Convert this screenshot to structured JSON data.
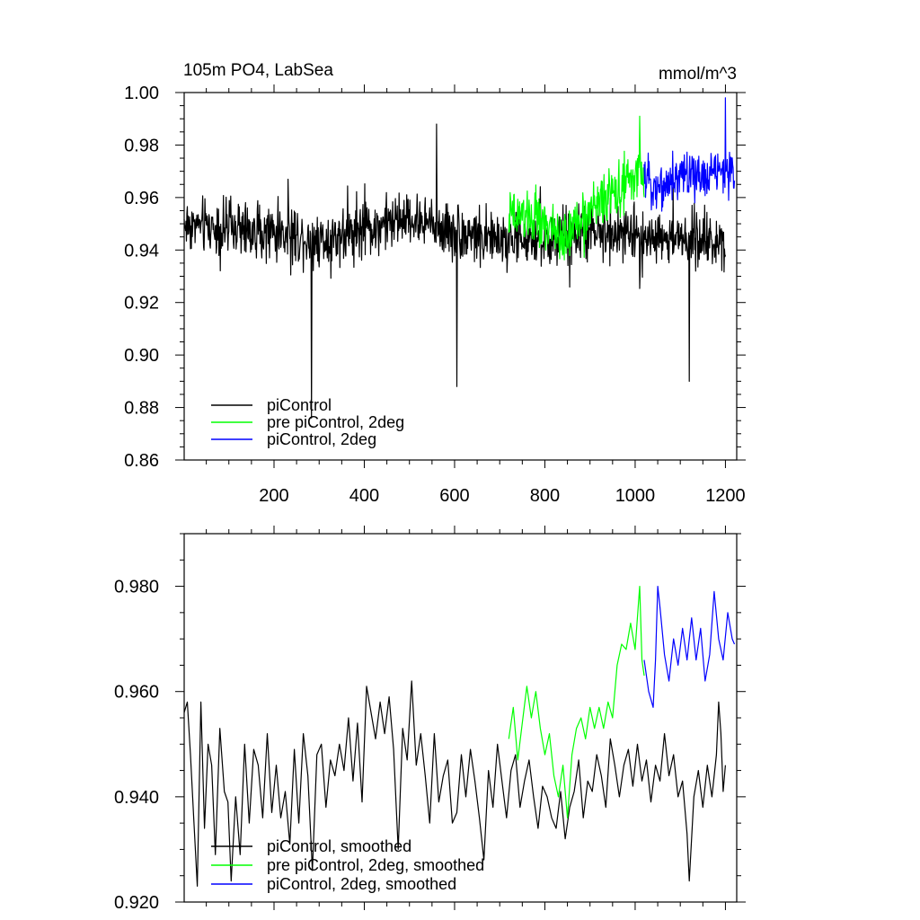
{
  "colors": {
    "black": "#000000",
    "green": "#00ff00",
    "blue": "#0000ff",
    "axis": "#000000",
    "background": "#ffffff"
  },
  "chart_data": [
    {
      "type": "line",
      "title": "105m PO4, LabSea",
      "units": "mmol/m^3",
      "xlim": [
        1,
        1225
      ],
      "ylim": [
        0.86,
        1.0
      ],
      "x_ticks": [
        200,
        400,
        600,
        800,
        1000,
        1200
      ],
      "x_tick_labels": [
        "200",
        "400",
        "600",
        "800",
        "1000",
        "1200"
      ],
      "y_ticks": [
        0.86,
        0.88,
        0.9,
        0.92,
        0.94,
        0.96,
        0.98,
        1.0
      ],
      "y_tick_labels": [
        "0.86",
        "0.88",
        "0.90",
        "0.92",
        "0.94",
        "0.96",
        "0.98",
        "1.00"
      ],
      "grid": false,
      "legend_position": "bottom-left",
      "series": [
        {
          "name": "piControl",
          "color": "#000000",
          "x_start": 1,
          "x_end": 1200,
          "anchors": [
            [
              1,
              0.95
            ],
            [
              100,
              0.948
            ],
            [
              200,
              0.947
            ],
            [
              300,
              0.944
            ],
            [
              400,
              0.948
            ],
            [
              500,
              0.952
            ],
            [
              600,
              0.947
            ],
            [
              700,
              0.944
            ],
            [
              800,
              0.944
            ],
            [
              900,
              0.946
            ],
            [
              1000,
              0.946
            ],
            [
              1100,
              0.944
            ],
            [
              1200,
              0.944
            ]
          ],
          "noise": 0.012,
          "extremes": [
            [
              283,
              0.876
            ],
            [
              560,
              0.988
            ],
            [
              605,
              0.888
            ],
            [
              1120,
              0.89
            ]
          ]
        },
        {
          "name": "pre piControl, 2deg",
          "color": "#00ff00",
          "x_start": 720,
          "x_end": 1020,
          "anchors": [
            [
              720,
              0.952
            ],
            [
              760,
              0.953
            ],
            [
              800,
              0.95
            ],
            [
              840,
              0.944
            ],
            [
              880,
              0.952
            ],
            [
              920,
              0.958
            ],
            [
              960,
              0.963
            ],
            [
              1000,
              0.967
            ],
            [
              1020,
              0.97
            ]
          ],
          "noise": 0.011,
          "extremes": [
            [
              1010,
              0.991
            ]
          ]
        },
        {
          "name": "piControl, 2deg",
          "color": "#0000ff",
          "x_start": 1020,
          "x_end": 1220,
          "anchors": [
            [
              1020,
              0.967
            ],
            [
              1060,
              0.964
            ],
            [
              1100,
              0.969
            ],
            [
              1140,
              0.968
            ],
            [
              1180,
              0.97
            ],
            [
              1220,
              0.969
            ]
          ],
          "noise": 0.01,
          "extremes": [
            [
              1200,
              0.998
            ]
          ]
        }
      ]
    },
    {
      "type": "line",
      "xlim": [
        1,
        1225
      ],
      "ylim": [
        0.92,
        0.99
      ],
      "x_ticks": [
        200,
        400,
        600,
        800,
        1000,
        1200
      ],
      "y_ticks": [
        0.92,
        0.94,
        0.96,
        0.98
      ],
      "y_tick_labels": [
        "0.920",
        "0.940",
        "0.960",
        "0.980"
      ],
      "grid": false,
      "legend_position": "bottom-left",
      "series": [
        {
          "name": "piControl, smoothed",
          "color": "#000000",
          "points": [
            [
              1,
              0.956
            ],
            [
              8,
              0.958
            ],
            [
              15,
              0.948
            ],
            [
              22,
              0.936
            ],
            [
              30,
              0.923
            ],
            [
              38,
              0.958
            ],
            [
              46,
              0.934
            ],
            [
              54,
              0.95
            ],
            [
              62,
              0.946
            ],
            [
              70,
              0.929
            ],
            [
              80,
              0.953
            ],
            [
              90,
              0.941
            ],
            [
              98,
              0.939
            ],
            [
              105,
              0.924
            ],
            [
              115,
              0.94
            ],
            [
              125,
              0.929
            ],
            [
              135,
              0.95
            ],
            [
              145,
              0.935
            ],
            [
              155,
              0.949
            ],
            [
              165,
              0.946
            ],
            [
              175,
              0.936
            ],
            [
              185,
              0.952
            ],
            [
              195,
              0.937
            ],
            [
              205,
              0.946
            ],
            [
              215,
              0.936
            ],
            [
              225,
              0.941
            ],
            [
              235,
              0.931
            ],
            [
              245,
              0.949
            ],
            [
              255,
              0.935
            ],
            [
              265,
              0.952
            ],
            [
              275,
              0.944
            ],
            [
              285,
              0.926
            ],
            [
              295,
              0.948
            ],
            [
              305,
              0.95
            ],
            [
              315,
              0.938
            ],
            [
              325,
              0.947
            ],
            [
              335,
              0.944
            ],
            [
              345,
              0.95
            ],
            [
              355,
              0.945
            ],
            [
              365,
              0.955
            ],
            [
              375,
              0.943
            ],
            [
              385,
              0.954
            ],
            [
              395,
              0.939
            ],
            [
              405,
              0.961
            ],
            [
              415,
              0.956
            ],
            [
              425,
              0.951
            ],
            [
              435,
              0.958
            ],
            [
              445,
              0.952
            ],
            [
              455,
              0.959
            ],
            [
              465,
              0.949
            ],
            [
              475,
              0.93
            ],
            [
              485,
              0.953
            ],
            [
              495,
              0.947
            ],
            [
              505,
              0.962
            ],
            [
              515,
              0.946
            ],
            [
              525,
              0.952
            ],
            [
              535,
              0.944
            ],
            [
              545,
              0.935
            ],
            [
              555,
              0.952
            ],
            [
              565,
              0.939
            ],
            [
              575,
              0.944
            ],
            [
              585,
              0.947
            ],
            [
              595,
              0.935
            ],
            [
              605,
              0.937
            ],
            [
              615,
              0.948
            ],
            [
              625,
              0.94
            ],
            [
              635,
              0.949
            ],
            [
              645,
              0.943
            ],
            [
              655,
              0.936
            ],
            [
              665,
              0.928
            ],
            [
              675,
              0.945
            ],
            [
              685,
              0.938
            ],
            [
              695,
              0.95
            ],
            [
              705,
              0.943
            ],
            [
              715,
              0.936
            ],
            [
              725,
              0.945
            ],
            [
              735,
              0.948
            ],
            [
              745,
              0.938
            ],
            [
              755,
              0.943
            ],
            [
              765,
              0.947
            ],
            [
              775,
              0.94
            ],
            [
              785,
              0.934
            ],
            [
              795,
              0.942
            ],
            [
              805,
              0.94
            ],
            [
              815,
              0.936
            ],
            [
              825,
              0.934
            ],
            [
              835,
              0.941
            ],
            [
              845,
              0.932
            ],
            [
              855,
              0.938
            ],
            [
              865,
              0.941
            ],
            [
              875,
              0.947
            ],
            [
              885,
              0.936
            ],
            [
              895,
              0.943
            ],
            [
              905,
              0.941
            ],
            [
              915,
              0.948
            ],
            [
              925,
              0.944
            ],
            [
              935,
              0.938
            ],
            [
              945,
              0.951
            ],
            [
              955,
              0.946
            ],
            [
              965,
              0.94
            ],
            [
              975,
              0.946
            ],
            [
              985,
              0.949
            ],
            [
              995,
              0.942
            ],
            [
              1005,
              0.95
            ],
            [
              1015,
              0.943
            ],
            [
              1025,
              0.947
            ],
            [
              1035,
              0.939
            ],
            [
              1045,
              0.946
            ],
            [
              1055,
              0.943
            ],
            [
              1065,
              0.952
            ],
            [
              1075,
              0.944
            ],
            [
              1085,
              0.948
            ],
            [
              1095,
              0.94
            ],
            [
              1105,
              0.943
            ],
            [
              1115,
              0.933
            ],
            [
              1120,
              0.924
            ],
            [
              1130,
              0.94
            ],
            [
              1140,
              0.945
            ],
            [
              1150,
              0.938
            ],
            [
              1160,
              0.946
            ],
            [
              1170,
              0.94
            ],
            [
              1180,
              0.948
            ],
            [
              1185,
              0.958
            ],
            [
              1190,
              0.952
            ],
            [
              1195,
              0.941
            ],
            [
              1200,
              0.946
            ]
          ]
        },
        {
          "name": "pre piControl, 2deg, smoothed",
          "color": "#00ff00",
          "points": [
            [
              720,
              0.951
            ],
            [
              730,
              0.957
            ],
            [
              740,
              0.947
            ],
            [
              750,
              0.954
            ],
            [
              760,
              0.961
            ],
            [
              770,
              0.955
            ],
            [
              780,
              0.96
            ],
            [
              790,
              0.953
            ],
            [
              800,
              0.948
            ],
            [
              810,
              0.952
            ],
            [
              820,
              0.944
            ],
            [
              830,
              0.94
            ],
            [
              840,
              0.946
            ],
            [
              850,
              0.936
            ],
            [
              860,
              0.948
            ],
            [
              870,
              0.953
            ],
            [
              880,
              0.955
            ],
            [
              890,
              0.951
            ],
            [
              900,
              0.957
            ],
            [
              910,
              0.953
            ],
            [
              920,
              0.957
            ],
            [
              930,
              0.953
            ],
            [
              940,
              0.958
            ],
            [
              950,
              0.955
            ],
            [
              960,
              0.965
            ],
            [
              970,
              0.969
            ],
            [
              980,
              0.968
            ],
            [
              990,
              0.973
            ],
            [
              1000,
              0.968
            ],
            [
              1010,
              0.98
            ],
            [
              1015,
              0.966
            ],
            [
              1020,
              0.963
            ]
          ]
        },
        {
          "name": "piControl, 2deg, smoothed",
          "color": "#0000ff",
          "points": [
            [
              1020,
              0.966
            ],
            [
              1030,
              0.96
            ],
            [
              1040,
              0.957
            ],
            [
              1045,
              0.966
            ],
            [
              1050,
              0.98
            ],
            [
              1055,
              0.976
            ],
            [
              1065,
              0.967
            ],
            [
              1075,
              0.962
            ],
            [
              1085,
              0.97
            ],
            [
              1095,
              0.965
            ],
            [
              1105,
              0.972
            ],
            [
              1115,
              0.966
            ],
            [
              1125,
              0.974
            ],
            [
              1135,
              0.966
            ],
            [
              1145,
              0.972
            ],
            [
              1155,
              0.962
            ],
            [
              1165,
              0.967
            ],
            [
              1175,
              0.979
            ],
            [
              1185,
              0.97
            ],
            [
              1195,
              0.966
            ],
            [
              1205,
              0.975
            ],
            [
              1215,
              0.97
            ],
            [
              1220,
              0.969
            ]
          ]
        }
      ]
    }
  ]
}
